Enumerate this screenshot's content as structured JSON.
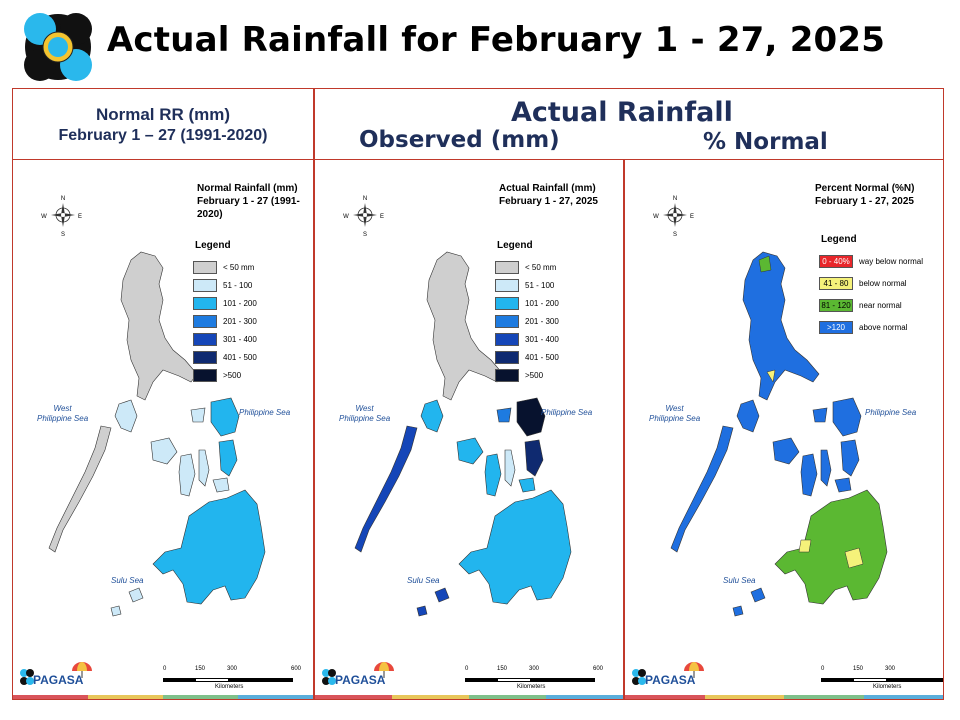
{
  "title": "Actual Rainfall for February 1 - 27, 2025",
  "header": {
    "left_line1": "Normal RR (mm)",
    "left_line2": "February 1 – 27 (1991-2020)",
    "actual": "Actual Rainfall",
    "observed": "Observed (mm)",
    "percent": "% Normal"
  },
  "panels": [
    {
      "title1": "Normal Rainfall (mm)",
      "title2": "February 1 - 27 (1991-2020)",
      "legend_title": "Legend",
      "legend": [
        {
          "label": "< 50 mm",
          "color": "#cfcfcf"
        },
        {
          "label": "51 - 100",
          "color": "#cde9f8"
        },
        {
          "label": "101 - 200",
          "color": "#22b5ee"
        },
        {
          "label": "201 - 300",
          "color": "#1e7be0"
        },
        {
          "label": "301 - 400",
          "color": "#1546b8"
        },
        {
          "label": "401 - 500",
          "color": "#0f2a70"
        },
        {
          "label": ">500",
          "color": "#07122e"
        }
      ],
      "sea_west": "West\nPhilippine Sea",
      "sea_east": "Philippine Sea",
      "sea_sulu": "Sulu Sea"
    },
    {
      "title1": "Actual Rainfall (mm)",
      "title2": "February 1 - 27, 2025",
      "legend_title": "Legend",
      "legend": [
        {
          "label": "< 50 mm",
          "color": "#cfcfcf"
        },
        {
          "label": "51 - 100",
          "color": "#cde9f8"
        },
        {
          "label": "101 - 200",
          "color": "#22b5ee"
        },
        {
          "label": "201 - 300",
          "color": "#1e7be0"
        },
        {
          "label": "301 - 400",
          "color": "#1546b8"
        },
        {
          "label": "401 - 500",
          "color": "#0f2a70"
        },
        {
          "label": ">500",
          "color": "#07122e"
        }
      ],
      "sea_west": "West\nPhilippine Sea",
      "sea_east": "Philippine Sea",
      "sea_sulu": "Sulu Sea"
    },
    {
      "title1": "Percent Normal (%N)",
      "title2": "February 1 - 27, 2025",
      "legend_title": "Legend",
      "legend": [
        {
          "code": "0 - 40%",
          "label": "way below normal",
          "color": "#e8262a"
        },
        {
          "code": "41 - 80",
          "label": "below normal",
          "color": "#f5f27a"
        },
        {
          "code": "81 - 120",
          "label": "near normal",
          "color": "#5bb832"
        },
        {
          "code": ">120",
          "label": "above normal",
          "color": "#1f6fe0"
        }
      ],
      "sea_west": "West\nPhilippine Sea",
      "sea_east": "Philippine Sea",
      "sea_sulu": "Sulu Sea"
    }
  ],
  "scale": {
    "ticks": [
      "0",
      "150",
      "300",
      "600"
    ],
    "unit": "Kilometers"
  },
  "compass": {
    "n": "N",
    "s": "S",
    "e": "E",
    "w": "W"
  },
  "pagasa": {
    "text": "PAGASA"
  }
}
